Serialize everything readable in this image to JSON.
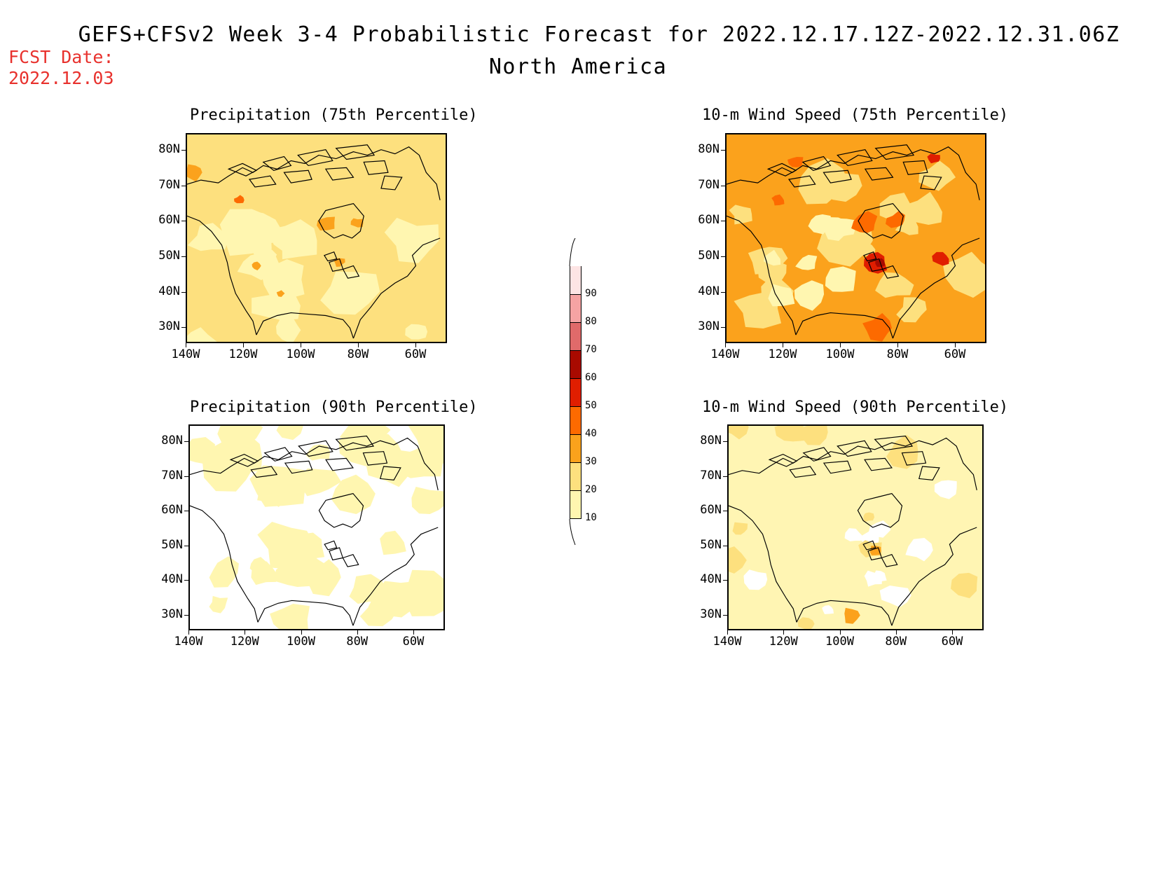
{
  "header": {
    "title_line1": "GEFS+CFSv2 Week 3-4 Probabilistic Forecast for 2022.12.17.12Z-2022.12.31.06Z",
    "title_line2": "North America",
    "fcst_label": "FCST Date:",
    "fcst_date": "2022.12.03"
  },
  "axes": {
    "lat_labels": [
      "80N",
      "70N",
      "60N",
      "50N",
      "40N",
      "30N"
    ],
    "lon_labels": [
      "140W",
      "120W",
      "100W",
      "80W",
      "60W"
    ]
  },
  "panels": [
    {
      "id": "p75",
      "title": "Precipitation (75th Percentile)",
      "base_color": "#fde07e",
      "style": "precip75"
    },
    {
      "id": "w75",
      "title": "10-m Wind Speed (75th Percentile)",
      "base_color": "#fba21c",
      "style": "wind75"
    },
    {
      "id": "p90",
      "title": "Precipitation (90th Percentile)",
      "base_color": "#ffffff",
      "style": "precip90"
    },
    {
      "id": "w90",
      "title": "10-m Wind Speed (90th Percentile)",
      "base_color": "#fff5b3",
      "style": "wind90"
    }
  ],
  "colorbar": {
    "levels": [
      "10",
      "20",
      "30",
      "40",
      "50",
      "60",
      "70",
      "80",
      "90"
    ],
    "colors": [
      "#fff6b0",
      "#fde07e",
      "#fba21c",
      "#fd6a00",
      "#e01e00",
      "#a80a00",
      "#e06a6a",
      "#f5a3a3",
      "#fde4e4"
    ]
  }
}
